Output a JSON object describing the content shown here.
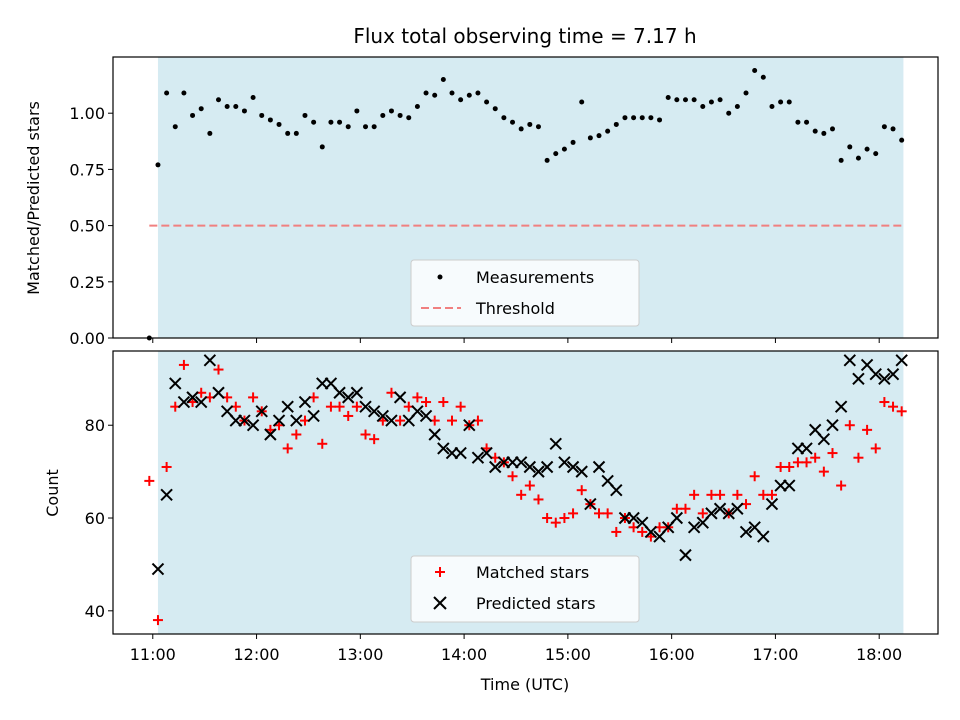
{
  "title": "Flux total observing time = 7.17 h",
  "colors": {
    "shade": "#add8e6",
    "measurement": "#000000",
    "threshold": "#f08080",
    "matched": "#ff0000",
    "predicted": "#000000"
  },
  "chart_data": [
    {
      "type": "scatter",
      "ylabel": "Matched/Predicted stars",
      "xlabel": "",
      "xlim": [
        "10:37",
        "18:34"
      ],
      "ylim": [
        0,
        1.25
      ],
      "yticks": [
        "0.00",
        "0.25",
        "0.50",
        "0.75",
        "1.00"
      ],
      "observing_window": [
        "11:03",
        "18:14"
      ],
      "threshold": 0.5,
      "legend": [
        "Measurements",
        "Threshold"
      ],
      "legend_position": "bottom-center",
      "series": [
        {
          "name": "Measurements",
          "x": [
            "10:58",
            "11:03",
            "11:08",
            "11:13",
            "11:18",
            "11:23",
            "11:28",
            "11:33",
            "11:38",
            "11:43",
            "11:48",
            "11:53",
            "11:58",
            "12:03",
            "12:08",
            "12:13",
            "12:18",
            "12:23",
            "12:28",
            "12:33",
            "12:38",
            "12:43",
            "12:48",
            "12:53",
            "12:58",
            "13:03",
            "13:08",
            "13:13",
            "13:18",
            "13:23",
            "13:28",
            "13:33",
            "13:38",
            "13:43",
            "13:48",
            "13:53",
            "13:58",
            "14:03",
            "14:08",
            "14:13",
            "14:18",
            "14:23",
            "14:28",
            "14:33",
            "14:38",
            "14:43",
            "14:48",
            "14:53",
            "14:58",
            "15:03",
            "15:08",
            "15:13",
            "15:18",
            "15:23",
            "15:28",
            "15:33",
            "15:38",
            "15:43",
            "15:48",
            "15:53",
            "15:58",
            "16:03",
            "16:08",
            "16:13",
            "16:18",
            "16:23",
            "16:28",
            "16:33",
            "16:38",
            "16:43",
            "16:48",
            "16:53",
            "16:58",
            "17:03",
            "17:08",
            "17:13",
            "17:18",
            "17:23",
            "17:28",
            "17:33",
            "17:38",
            "17:43",
            "17:48",
            "17:53",
            "17:58",
            "18:03",
            "18:08",
            "18:13"
          ],
          "y": [
            0.0,
            0.77,
            1.09,
            0.94,
            1.09,
            0.99,
            1.02,
            0.91,
            1.06,
            1.03,
            1.03,
            1.01,
            1.07,
            0.99,
            0.97,
            0.95,
            0.91,
            0.91,
            0.99,
            0.96,
            0.85,
            0.96,
            0.96,
            0.94,
            1.01,
            0.94,
            0.94,
            0.99,
            1.01,
            0.99,
            0.98,
            1.03,
            1.09,
            1.08,
            1.15,
            1.09,
            1.06,
            1.08,
            1.09,
            1.05,
            1.02,
            0.98,
            0.96,
            0.93,
            0.95,
            0.94,
            0.79,
            0.82,
            0.84,
            0.87,
            1.05,
            0.89,
            0.9,
            0.92,
            0.95,
            0.98,
            0.98,
            0.98,
            0.98,
            0.97,
            1.07,
            1.06,
            1.06,
            1.06,
            1.03,
            1.05,
            1.06,
            1.0,
            1.03,
            1.09,
            1.19,
            1.16,
            1.03,
            1.05,
            1.05,
            0.96,
            0.96,
            0.92,
            0.91,
            0.93,
            0.79,
            0.85,
            0.8,
            0.84,
            0.82,
            0.94,
            0.93,
            0.88
          ]
        }
      ]
    },
    {
      "type": "scatter",
      "ylabel": "Count",
      "xlabel": "Time (UTC)",
      "xlim": [
        "10:37",
        "18:34"
      ],
      "ylim": [
        35,
        96
      ],
      "yticks": [
        "40",
        "60",
        "80"
      ],
      "xticks": [
        "11:00",
        "12:00",
        "13:00",
        "14:00",
        "15:00",
        "16:00",
        "17:00",
        "18:00"
      ],
      "observing_window": [
        "11:03",
        "18:14"
      ],
      "legend": [
        "Matched stars",
        "Predicted stars"
      ],
      "legend_position": "bottom-center",
      "series": [
        {
          "name": "Matched stars",
          "x": [
            "10:58",
            "11:03",
            "11:08",
            "11:13",
            "11:18",
            "11:23",
            "11:28",
            "11:33",
            "11:38",
            "11:43",
            "11:48",
            "11:53",
            "11:58",
            "12:03",
            "12:08",
            "12:13",
            "12:18",
            "12:23",
            "12:28",
            "12:33",
            "12:38",
            "12:43",
            "12:48",
            "12:53",
            "12:58",
            "13:03",
            "13:08",
            "13:13",
            "13:18",
            "13:23",
            "13:28",
            "13:33",
            "13:38",
            "13:43",
            "13:48",
            "13:53",
            "13:58",
            "14:03",
            "14:08",
            "14:13",
            "14:18",
            "14:23",
            "14:28",
            "14:33",
            "14:38",
            "14:43",
            "14:48",
            "14:53",
            "14:58",
            "15:03",
            "15:08",
            "15:13",
            "15:18",
            "15:23",
            "15:28",
            "15:33",
            "15:38",
            "15:43",
            "15:48",
            "15:53",
            "15:58",
            "16:03",
            "16:08",
            "16:13",
            "16:18",
            "16:23",
            "16:28",
            "16:33",
            "16:38",
            "16:43",
            "16:48",
            "16:53",
            "16:58",
            "17:03",
            "17:08",
            "17:13",
            "17:18",
            "17:23",
            "17:28",
            "17:33",
            "17:38",
            "17:43",
            "17:48",
            "17:53",
            "17:58",
            "18:03",
            "18:08",
            "18:13"
          ],
          "y": [
            68,
            38,
            71,
            84,
            93,
            85,
            87,
            86,
            92,
            86,
            84,
            81,
            86,
            83,
            79,
            80,
            75,
            78,
            81,
            86,
            76,
            84,
            84,
            82,
            84,
            78,
            77,
            81,
            87,
            81,
            84,
            86,
            85,
            81,
            85,
            81,
            84,
            80,
            81,
            75,
            73,
            72,
            69,
            65,
            67,
            64,
            60,
            59,
            60,
            61,
            66,
            63,
            61,
            61,
            57,
            60,
            58,
            57,
            56,
            58,
            58,
            62,
            62,
            65,
            61,
            65,
            65,
            61,
            65,
            63,
            69,
            65,
            65,
            71,
            71,
            72,
            72,
            73,
            70,
            74,
            67,
            80,
            73,
            79,
            75,
            85,
            84,
            83
          ]
        },
        {
          "name": "Predicted stars",
          "x": [
            "11:03",
            "11:08",
            "11:13",
            "11:18",
            "11:23",
            "11:28",
            "11:33",
            "11:38",
            "11:43",
            "11:48",
            "11:53",
            "11:58",
            "12:03",
            "12:08",
            "12:13",
            "12:18",
            "12:23",
            "12:28",
            "12:33",
            "12:38",
            "12:43",
            "12:48",
            "12:53",
            "12:58",
            "13:03",
            "13:08",
            "13:13",
            "13:18",
            "13:23",
            "13:28",
            "13:33",
            "13:38",
            "13:43",
            "13:48",
            "13:53",
            "13:58",
            "14:03",
            "14:08",
            "14:13",
            "14:18",
            "14:23",
            "14:28",
            "14:33",
            "14:38",
            "14:43",
            "14:48",
            "14:53",
            "14:58",
            "15:03",
            "15:08",
            "15:13",
            "15:18",
            "15:23",
            "15:28",
            "15:33",
            "15:38",
            "15:43",
            "15:48",
            "15:53",
            "15:58",
            "16:03",
            "16:08",
            "16:13",
            "16:18",
            "16:23",
            "16:28",
            "16:33",
            "16:38",
            "16:43",
            "16:48",
            "16:53",
            "16:58",
            "17:03",
            "17:08",
            "17:13",
            "17:18",
            "17:23",
            "17:28",
            "17:33",
            "17:38",
            "17:43",
            "17:48",
            "17:53",
            "17:58",
            "18:03",
            "18:08",
            "18:13"
          ],
          "y": [
            49,
            65,
            89,
            85,
            86,
            85,
            94,
            87,
            83,
            81,
            81,
            80,
            83,
            78,
            81,
            84,
            81,
            85,
            82,
            89,
            89,
            87,
            86,
            87,
            84,
            83,
            82,
            81,
            86,
            81,
            83,
            82,
            78,
            75,
            74,
            74,
            80,
            73,
            74,
            71,
            72,
            72,
            72,
            71,
            70,
            71,
            76,
            72,
            71,
            70,
            63,
            71,
            68,
            66,
            60,
            60,
            59,
            57,
            56,
            58,
            60,
            52,
            58,
            59,
            61,
            62,
            61,
            62,
            57,
            58,
            56,
            63,
            67,
            67,
            75,
            75,
            79,
            77,
            80,
            84,
            94,
            90,
            93,
            91,
            90,
            91,
            94
          ]
        }
      ]
    }
  ]
}
